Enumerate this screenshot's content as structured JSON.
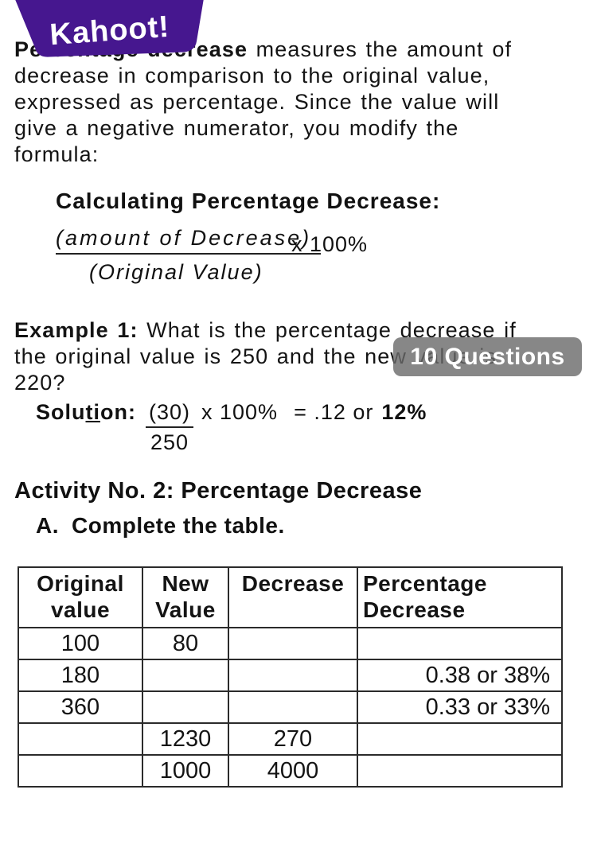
{
  "logo": {
    "label": "Kahoot!",
    "bg_color": "#46178F",
    "text_color": "#ffffff"
  },
  "intro": {
    "line1_bold": "Percentage decrease",
    "line1_rest": " measures the amount of",
    "line2": "decrease in comparison to the original value,",
    "line3": "expressed as percentage. Since the value will",
    "line4": "give a negative numerator, you modify the",
    "line5": "formula:"
  },
  "formula": {
    "heading": "Calculating Percentage Decrease:",
    "numerator": "(amount of Decrease)",
    "multiplier": "x 100%",
    "denominator": "(Original Value)"
  },
  "example": {
    "line1_bold": "Example 1:",
    "line1_rest": " What is the percentage decrease if",
    "line2": "the original value is 250 and the new value is",
    "line3": "220?"
  },
  "badge": {
    "label": "10 Questions",
    "bg_color": "rgba(105,105,105,0.8)"
  },
  "solution": {
    "label_pre": "Solu",
    "label_mid": "ti",
    "label_post": "on:",
    "numerator": "(30)",
    "denominator": "250",
    "multiplier": "x 100%",
    "equals": "= .12 or",
    "result": "12%"
  },
  "activity": {
    "heading": "Activity No. 2: Percentage Decrease",
    "list_label": "A.",
    "list_text": "Complete the table."
  },
  "table": {
    "headers": [
      "Original value",
      "New Value",
      "Decrease",
      "Percentage Decrease"
    ],
    "rows": [
      [
        "100",
        "80",
        "",
        ""
      ],
      [
        "180",
        "",
        "",
        "0.38 or 38%"
      ],
      [
        "360",
        "",
        "",
        "0.33 or 33%"
      ],
      [
        "",
        "1230",
        "270",
        ""
      ],
      [
        "",
        "1000",
        "4000",
        ""
      ]
    ]
  }
}
